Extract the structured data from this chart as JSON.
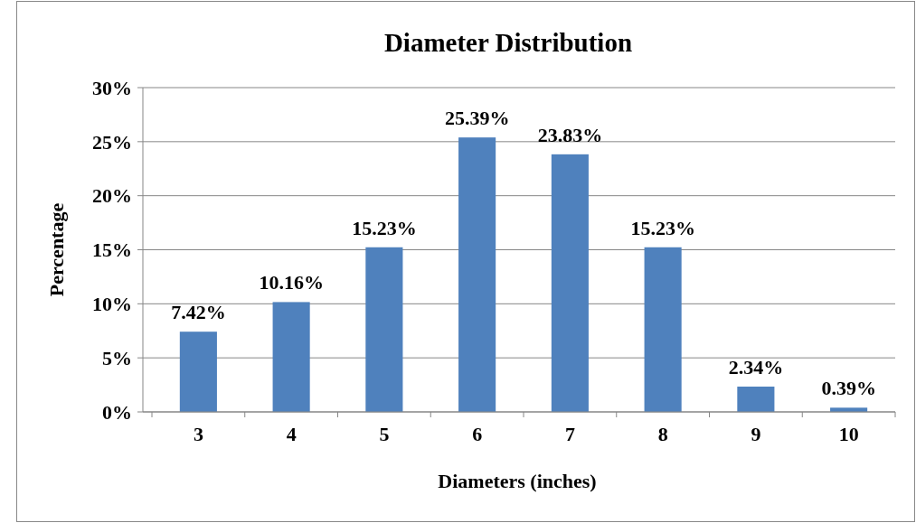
{
  "chart_data": {
    "type": "bar",
    "title": "Diameter Distribution",
    "xlabel": "Diameters  (inches)",
    "ylabel": "Percentage",
    "categories": [
      "3",
      "4",
      "5",
      "6",
      "7",
      "8",
      "9",
      "10"
    ],
    "values": [
      7.42,
      10.16,
      15.23,
      25.39,
      23.83,
      15.23,
      2.34,
      0.39
    ],
    "value_labels": [
      "7.42%",
      "10.16%",
      "15.23%",
      "25.39%",
      "23.83%",
      "15.23%",
      "2.34%",
      "0.39%"
    ],
    "color": "#4f81bd",
    "ylim": [
      0,
      30
    ],
    "yticks": [
      {
        "value": 0,
        "label": "0%"
      },
      {
        "value": 5,
        "label": "5%"
      },
      {
        "value": 10,
        "label": "10%"
      },
      {
        "value": 15,
        "label": "15%"
      },
      {
        "value": 20,
        "label": "20%"
      },
      {
        "value": 25,
        "label": "25%"
      },
      {
        "value": 30,
        "label": "30%"
      }
    ],
    "grid": "y"
  }
}
